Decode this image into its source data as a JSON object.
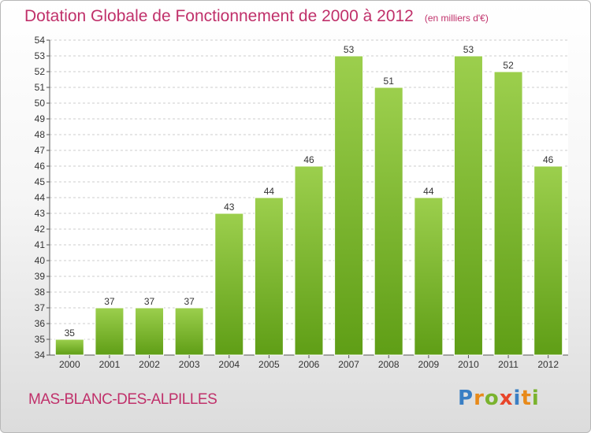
{
  "title": "Dotation Globale de Fonctionnement de 2000 à 2012",
  "subtitle": "(en milliers d'€)",
  "town": "MAS-BLANC-DES-ALPILLES",
  "logo": {
    "letters": [
      "P",
      "r",
      "o",
      "x",
      "i",
      "t",
      "i"
    ],
    "colors": [
      "#3a7fc4",
      "#e88a1a",
      "#7ab32e",
      "#e8452a",
      "#3a7fc4",
      "#e88a1a",
      "#7ab32e"
    ]
  },
  "colors": {
    "bar_top": "#9ccf4d",
    "bar_bottom": "#5f9e16",
    "title": "#c0306a",
    "grid": "#cccccc"
  },
  "chart_data": {
    "type": "bar",
    "categories": [
      "2000",
      "2001",
      "2002",
      "2003",
      "2004",
      "2005",
      "2006",
      "2007",
      "2008",
      "2009",
      "2010",
      "2011",
      "2012"
    ],
    "values": [
      35,
      37,
      37,
      37,
      43,
      44,
      46,
      53,
      51,
      44,
      53,
      52,
      46
    ],
    "ylim": [
      34,
      54
    ],
    "yticks": [
      34,
      35,
      36,
      37,
      38,
      39,
      40,
      41,
      42,
      43,
      44,
      45,
      46,
      47,
      48,
      49,
      50,
      51,
      52,
      53,
      54
    ],
    "grid": true,
    "xlabel": "",
    "ylabel": ""
  }
}
